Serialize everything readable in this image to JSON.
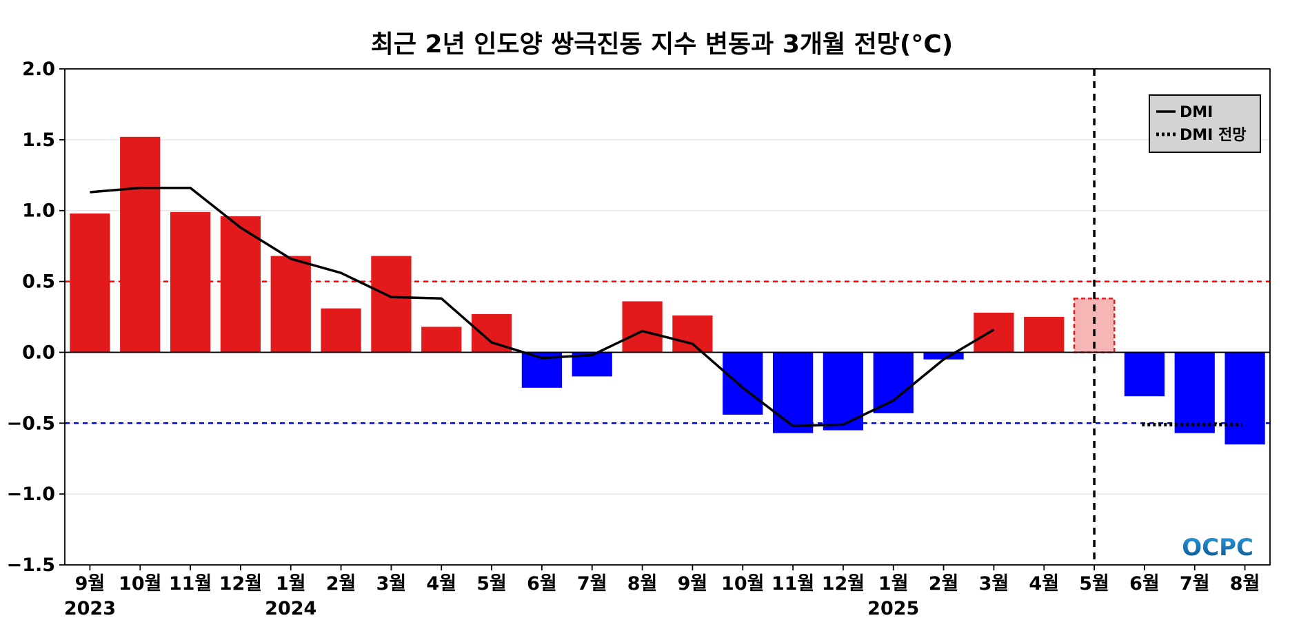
{
  "chart_data": {
    "type": "bar",
    "title": "최근 2년 인도양 쌍극진동 지수 변동과 3개월 전망(°C)",
    "xlabel": "",
    "ylabel": "",
    "ylim": [
      -1.5,
      2.0
    ],
    "yticks": [
      "2.0",
      "1.5",
      "1.0",
      "0.5",
      "0.0",
      "−0.5",
      "−1.0",
      "−1.5"
    ],
    "ytick_values": [
      2.0,
      1.5,
      1.0,
      0.5,
      0.0,
      -0.5,
      -1.0,
      -1.5
    ],
    "categories": [
      "9월",
      "10월",
      "11월",
      "12월",
      "1월",
      "2월",
      "3월",
      "4월",
      "5월",
      "6월",
      "7월",
      "8월",
      "9월",
      "10월",
      "11월",
      "12월",
      "1월",
      "2월",
      "3월",
      "4월",
      "5월",
      "6월",
      "7월",
      "8월"
    ],
    "year_labels": [
      {
        "index": 0,
        "label": "2023"
      },
      {
        "index": 4,
        "label": "2024"
      },
      {
        "index": 16,
        "label": "2025"
      }
    ],
    "values": [
      0.98,
      1.52,
      0.99,
      0.96,
      0.68,
      0.31,
      0.68,
      0.18,
      0.27,
      -0.25,
      -0.17,
      0.36,
      0.26,
      -0.44,
      -0.57,
      -0.55,
      -0.43,
      -0.05,
      0.28,
      0.25,
      0.38,
      -0.31,
      -0.57,
      -0.65
    ],
    "forecast_start_index": 20,
    "series": [
      {
        "name": "DMI",
        "style": "solid",
        "values": [
          1.13,
          1.16,
          1.16,
          0.88,
          0.66,
          0.56,
          0.39,
          0.38,
          0.07,
          -0.04,
          -0.02,
          0.15,
          0.06,
          -0.25,
          -0.52,
          -0.51,
          -0.34,
          -0.05,
          0.16,
          null,
          null,
          null,
          null,
          null
        ]
      },
      {
        "name": "DMI 전망",
        "style": "dotted",
        "values": [
          null,
          null,
          null,
          null,
          null,
          null,
          null,
          null,
          null,
          null,
          null,
          null,
          null,
          null,
          null,
          null,
          null,
          null,
          null,
          null,
          null,
          -0.51,
          -0.51,
          -0.51
        ]
      }
    ],
    "thresholds": [
      {
        "value": 0.5,
        "color": "#ff0000",
        "style": "dashed"
      },
      {
        "value": -0.5,
        "color": "#0000ff",
        "style": "dashed"
      }
    ],
    "grid": true,
    "legend_position": "top-right",
    "colors": {
      "positive": "#e31a1c",
      "negative": "#0000ff",
      "forecast_positive": "#f7b6b6",
      "forecast_border": "#e31a1c",
      "legend_bg": "#d3d3d3"
    },
    "watermark": "OCPC"
  }
}
